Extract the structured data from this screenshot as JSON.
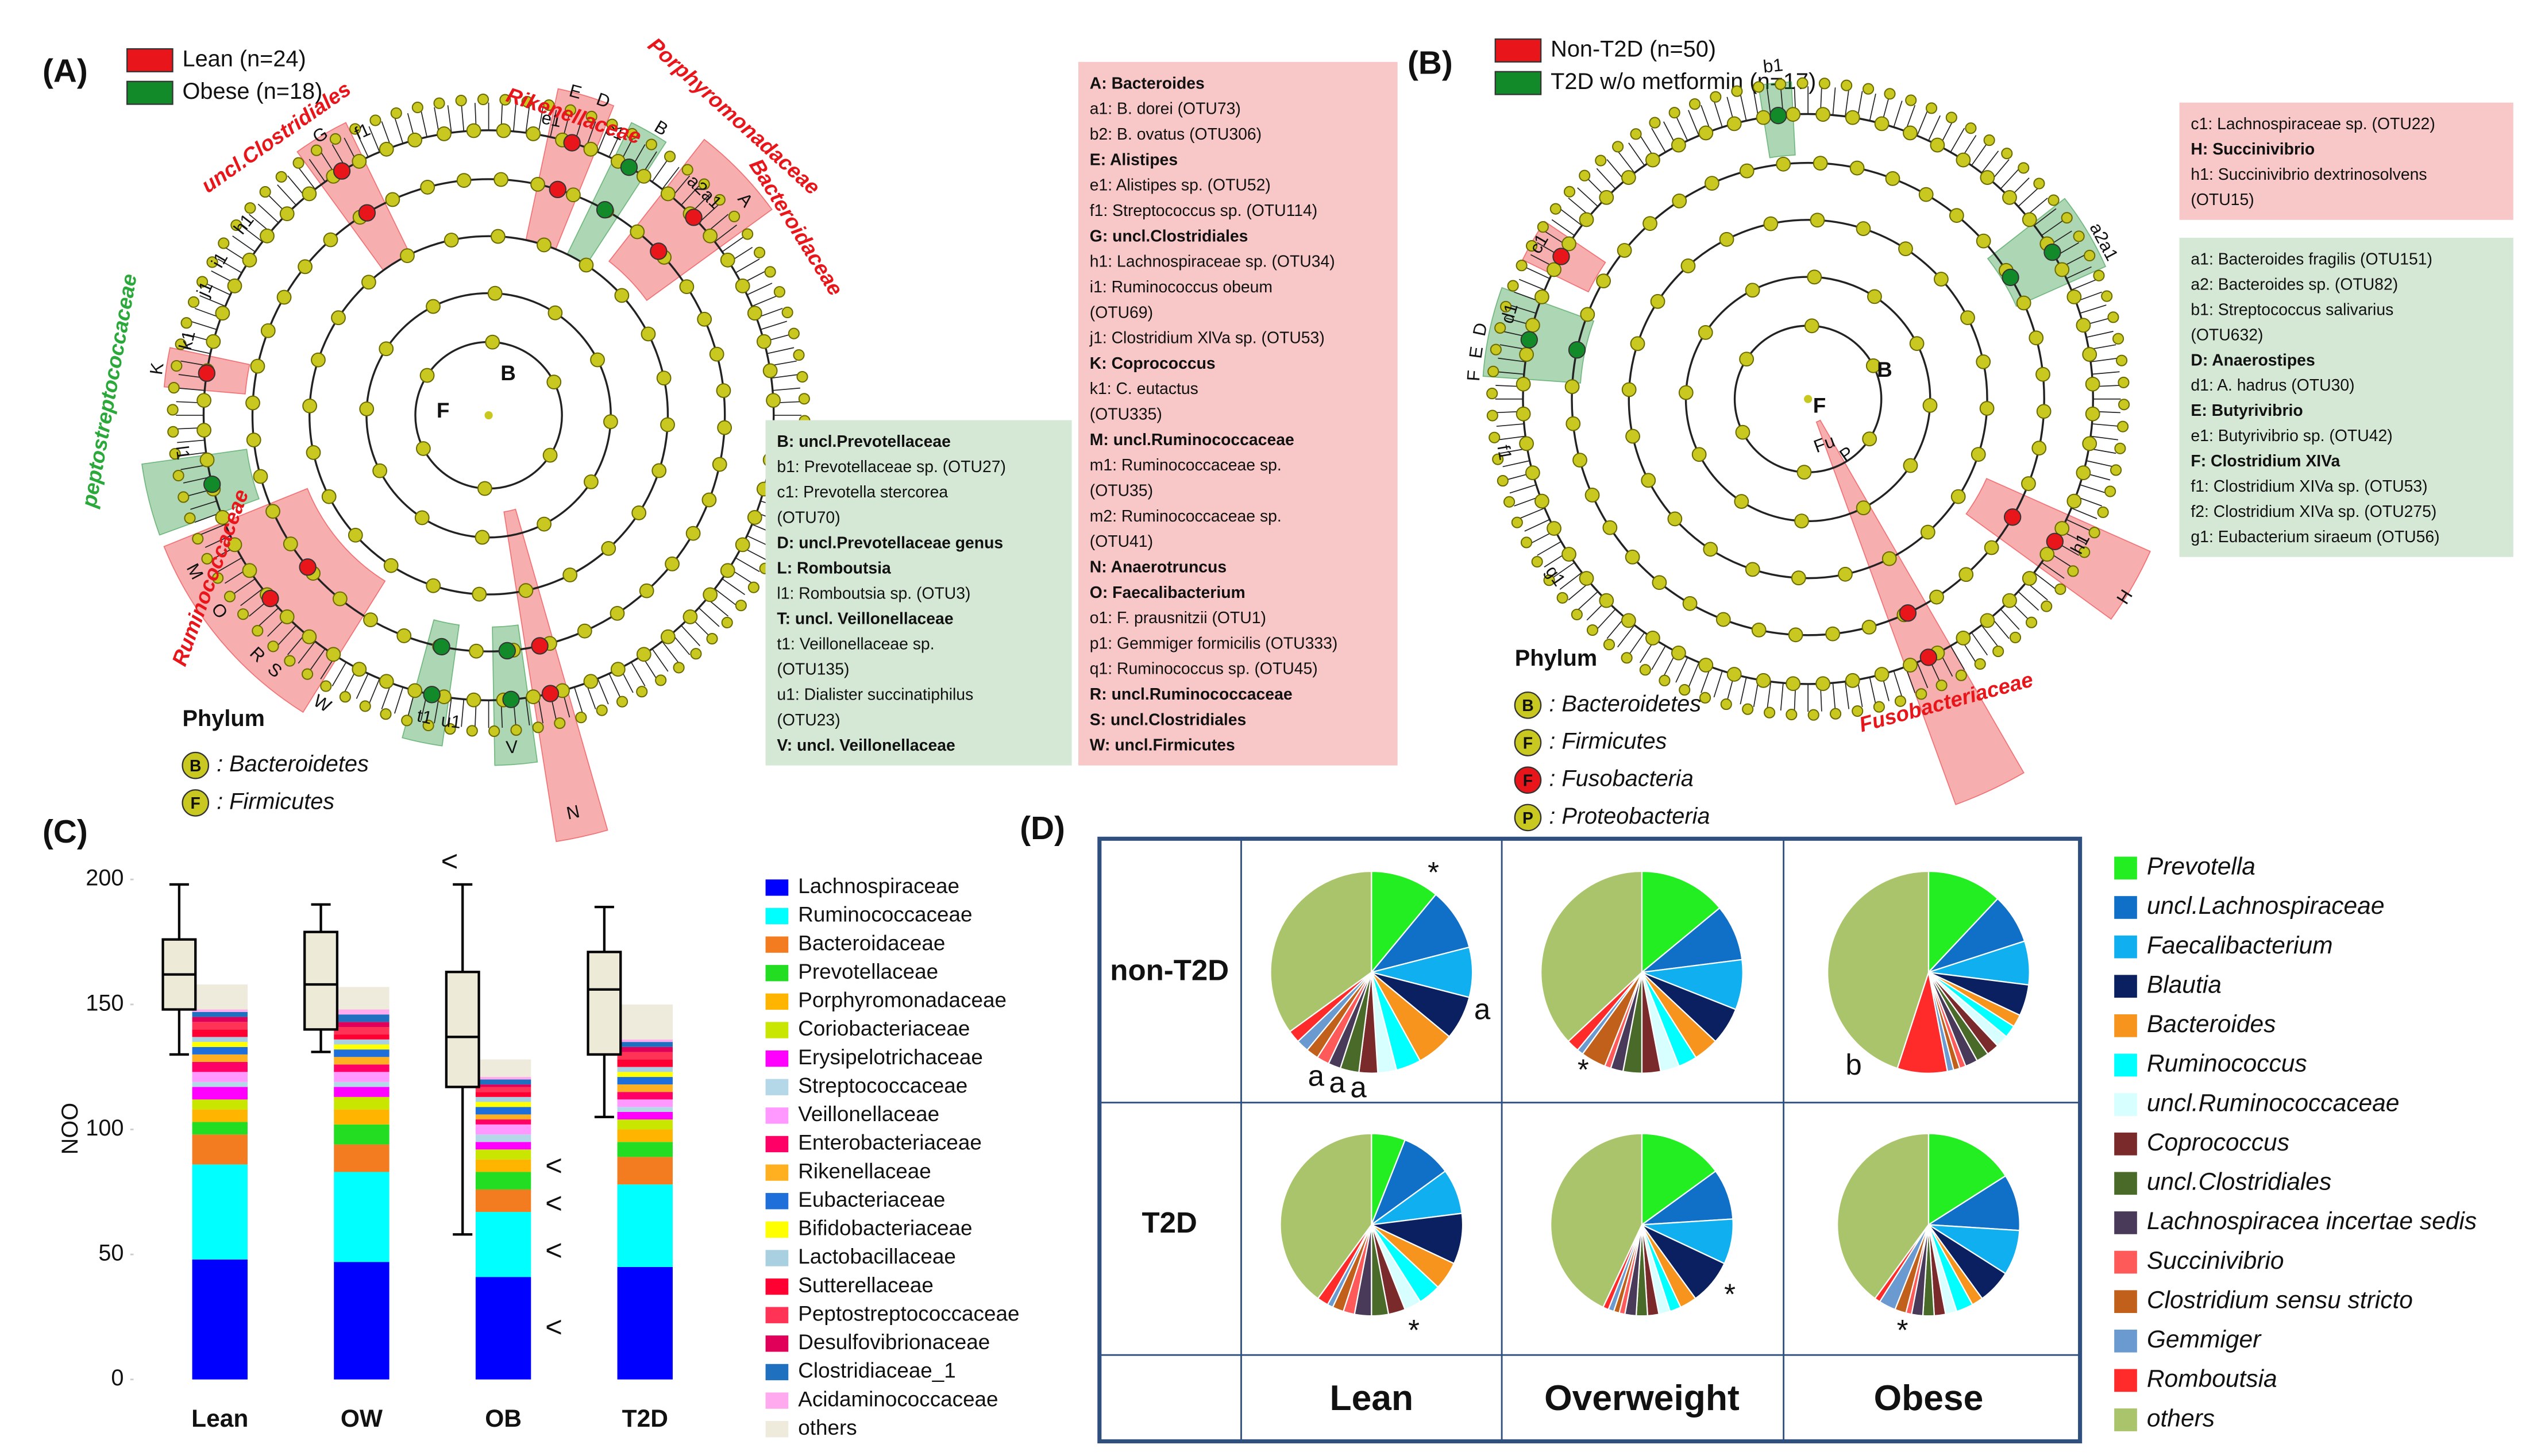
{
  "cladograms": [
    {
      "panel_label": "(A)",
      "legend": [
        {
          "name": "Lean (n=24)",
          "color": "#e8161b"
        },
        {
          "name": "Obese (n=18)",
          "color": "#138a2a"
        }
      ],
      "clade_labels": [
        {
          "text": "uncl.Clostridiales",
          "color": "#e8161b"
        },
        {
          "text": "Rikenellaceae",
          "color": "#e8161b"
        },
        {
          "text": "Porphyromonadaceae",
          "color": "#e8161b"
        },
        {
          "text": "Bacteroidaceae",
          "color": "#e8161b"
        },
        {
          "text": "peptostreptococcaceae",
          "color": "#2aa83a"
        },
        {
          "text": "Ruminococcaceae",
          "color": "#e8161b"
        }
      ],
      "node_labels": [
        "G",
        "f1",
        "E",
        "D",
        "e1",
        "c1",
        "B",
        "A",
        "a2a1",
        "h1",
        "i1",
        "j1",
        "K",
        "k1",
        "l1",
        "S",
        "R",
        "O",
        "N",
        "M",
        "t1",
        "u1",
        "V",
        "W"
      ],
      "center_labels": [
        "F",
        "B"
      ],
      "phylum_title": "Phylum",
      "phylum": [
        {
          "symbol": "B",
          "name": ": Bacteroidetes",
          "color": "#c8c820"
        },
        {
          "symbol": "F",
          "name": ": Firmicutes",
          "color": "#c8c820"
        }
      ],
      "boxes": [
        {
          "color": "#d5e8d6",
          "lines": [
            {
              "text": "B: uncl.Prevotellaceae",
              "bold": true
            },
            {
              "text": "b1: Prevotellaceae sp. (OTU27)",
              "bold": false
            },
            {
              "text": "c1: Prevotella stercorea",
              "bold": false
            },
            {
              "text": "(OTU70)",
              "bold": false
            },
            {
              "text": "D: uncl.Prevotellaceae genus",
              "bold": true
            },
            {
              "text": "L: Romboutsia",
              "bold": true
            },
            {
              "text": "l1: Romboutsia sp. (OTU3)",
              "bold": false
            },
            {
              "text": "T: uncl. Veillonellaceae",
              "bold": true
            },
            {
              "text": "t1: Veillonellaceae sp.",
              "bold": false
            },
            {
              "text": "(OTU135)",
              "bold": false
            },
            {
              "text": "u1: Dialister succinatiphilus",
              "bold": false
            },
            {
              "text": "(OTU23)",
              "bold": false
            },
            {
              "text": "V: uncl. Veillonellaceae",
              "bold": true
            }
          ]
        },
        {
          "color": "#f8c8c8",
          "lines": [
            {
              "text": "A: Bacteroides",
              "bold": true
            },
            {
              "text": "a1: B. dorei (OTU73)",
              "bold": false
            },
            {
              "text": "b2: B. ovatus (OTU306)",
              "bold": false
            },
            {
              "text": "E: Alistipes",
              "bold": true
            },
            {
              "text": "e1: Alistipes sp. (OTU52)",
              "bold": false
            },
            {
              "text": "f1: Streptococcus sp. (OTU114)",
              "bold": false
            },
            {
              "text": "G: uncl.Clostridiales",
              "bold": true
            },
            {
              "text": "h1: Lachnospiraceae sp. (OTU34)",
              "bold": false
            },
            {
              "text": "i1: Ruminococcus obeum",
              "bold": false
            },
            {
              "text": "(OTU69)",
              "bold": false
            },
            {
              "text": "j1: Clostridium XlVa sp. (OTU53)",
              "bold": false
            },
            {
              "text": "K: Coprococcus",
              "bold": true
            },
            {
              "text": "k1: C. eutactus",
              "bold": false
            },
            {
              "text": "(OTU335)",
              "bold": false
            },
            {
              "text": "M: uncl.Ruminococcaceae",
              "bold": true
            },
            {
              "text": "m1: Ruminococcaceae sp.",
              "bold": false
            },
            {
              "text": "(OTU35)",
              "bold": false
            },
            {
              "text": "m2: Ruminococcaceae sp.",
              "bold": false
            },
            {
              "text": "(OTU41)",
              "bold": false
            },
            {
              "text": "N: Anaerotruncus",
              "bold": true
            },
            {
              "text": "O: Faecalibacterium",
              "bold": true
            },
            {
              "text": "o1: F. prausnitzii (OTU1)",
              "bold": false
            },
            {
              "text": "p1: Gemmiger formicilis (OTU333)",
              "bold": false
            },
            {
              "text": "q1: Ruminococcus sp. (OTU45)",
              "bold": false
            },
            {
              "text": "R: uncl.Ruminococcaceae",
              "bold": true
            },
            {
              "text": "S: uncl.Clostridiales",
              "bold": true
            },
            {
              "text": "W: uncl.Firmicutes",
              "bold": true
            }
          ]
        }
      ]
    },
    {
      "panel_label": "(B)",
      "legend": [
        {
          "name": "Non-T2D (n=50)",
          "color": "#e8161b"
        },
        {
          "name": "T2D w/o metformin (n=17)",
          "color": "#138a2a"
        }
      ],
      "clade_labels": [
        {
          "text": "Fusobacteriaceae",
          "color": "#e8161b"
        }
      ],
      "node_labels": [
        "b1",
        "a2a1",
        "F",
        "E",
        "D",
        "d1",
        "c1",
        "f1",
        "g1",
        "h1",
        "H",
        "Fu",
        "P"
      ],
      "center_labels": [
        "F",
        "B"
      ],
      "phylum_title": "Phylum",
      "phylum": [
        {
          "symbol": "B",
          "name": ": Bacteroidetes",
          "color": "#c8c820"
        },
        {
          "symbol": "F",
          "name": ": Firmicutes",
          "color": "#c8c820"
        },
        {
          "symbol": "F",
          "name": ": Fusobacteria",
          "color": "#e8161b"
        },
        {
          "symbol": "P",
          "name": ": Proteobacteria",
          "color": "#c8c820"
        }
      ],
      "boxes": [
        {
          "color": "#f8c8c8",
          "lines": [
            {
              "text": "c1: Lachnospiraceae sp. (OTU22)",
              "bold": false
            },
            {
              "text": "H: Succinivibrio",
              "bold": true
            },
            {
              "text": "h1: Succinivibrio dextrinosolvens",
              "bold": false
            },
            {
              "text": "(OTU15)",
              "bold": false
            }
          ]
        },
        {
          "color": "#d5e8d6",
          "lines": [
            {
              "text": "a1: Bacteroides fragilis (OTU151)",
              "bold": false
            },
            {
              "text": "a2: Bacteroides sp. (OTU82)",
              "bold": false
            },
            {
              "text": "b1: Streptococcus salivarius",
              "bold": false
            },
            {
              "text": "(OTU632)",
              "bold": false
            },
            {
              "text": "D: Anaerostipes",
              "bold": true
            },
            {
              "text": "d1: A. hadrus (OTU30)",
              "bold": false
            },
            {
              "text": "E: Butyrivibrio",
              "bold": true
            },
            {
              "text": "e1: Butyrivibrio sp. (OTU42)",
              "bold": false
            },
            {
              "text": "F: Clostridium XIVa",
              "bold": true
            },
            {
              "text": "f1: Clostridium XIVa sp. (OTU53)",
              "bold": false
            },
            {
              "text": "f2: Clostridium XIVa sp. (OTU275)",
              "bold": false
            },
            {
              "text": "g1: Eubacterium siraeum (OTU56)",
              "bold": false
            }
          ]
        }
      ]
    }
  ],
  "chart_data": [
    {
      "type": "bar",
      "panel_label": "(C)",
      "stacked": true,
      "grid": false,
      "ylabel": "NOO",
      "categories": [
        "Lean",
        "OW",
        "OB",
        "T2D"
      ],
      "ylim": [
        0,
        200
      ],
      "yticks": [
        0,
        50,
        100,
        150,
        200
      ],
      "series": [
        {
          "name": "Lachnospiraceae",
          "color": "#0000ff",
          "values": [
            48,
            47,
            41,
            45
          ]
        },
        {
          "name": "Ruminococcaceae",
          "color": "#00ffff",
          "values": [
            38,
            36,
            26,
            33
          ]
        },
        {
          "name": "Bacteroidaceae",
          "color": "#f47c20",
          "values": [
            12,
            11,
            9,
            11
          ]
        },
        {
          "name": "Prevotellaceae",
          "color": "#22dd22",
          "values": [
            5,
            8,
            7,
            6
          ]
        },
        {
          "name": "Porphyromonadaceae",
          "color": "#ffb400",
          "values": [
            5,
            6,
            5,
            5
          ]
        },
        {
          "name": "Coriobacteriaceae",
          "color": "#c8e600",
          "values": [
            4,
            5,
            4,
            4
          ]
        },
        {
          "name": "Erysipelotrichaceae",
          "color": "#ff00ff",
          "values": [
            5,
            4,
            3,
            3
          ]
        },
        {
          "name": "Streptococcaceae",
          "color": "#b4d8e8",
          "values": [
            2,
            2,
            3,
            2
          ]
        },
        {
          "name": "Veillonellaceae",
          "color": "#ff99ff",
          "values": [
            4,
            4,
            4,
            3
          ]
        },
        {
          "name": "Enterobacteriaceae",
          "color": "#ff0066",
          "values": [
            4,
            3,
            2,
            3
          ]
        },
        {
          "name": "Rikenellaceae",
          "color": "#ffb020",
          "values": [
            3,
            3,
            2,
            3
          ]
        },
        {
          "name": "Eubacteriaceae",
          "color": "#1e6fd9",
          "values": [
            3,
            3,
            3,
            3
          ]
        },
        {
          "name": "Bifidobacteriaceae",
          "color": "#ffff00",
          "values": [
            2,
            2,
            2,
            2
          ]
        },
        {
          "name": "Lactobacillaceae",
          "color": "#a8d0e0",
          "values": [
            2,
            2,
            2,
            2
          ]
        },
        {
          "name": "Sutterellaceae",
          "color": "#ff0033",
          "values": [
            3,
            2,
            2,
            3
          ]
        },
        {
          "name": "Peptostreptococcaceae",
          "color": "#ff3355",
          "values": [
            3,
            3,
            2,
            3
          ]
        },
        {
          "name": "Desulfovibrionaceae",
          "color": "#e0005a",
          "values": [
            2,
            2,
            1,
            2
          ]
        },
        {
          "name": "Clostridiaceae_1",
          "color": "#2070c0",
          "values": [
            2,
            3,
            2,
            2
          ]
        },
        {
          "name": "Acidaminococcaceae",
          "color": "#ffaaee",
          "values": [
            1,
            2,
            1,
            1
          ]
        },
        {
          "name": "others",
          "color": "#eeeadc",
          "values": [
            10,
            9,
            7,
            14
          ]
        }
      ],
      "boxplot": {
        "color": "#eeead8",
        "whisker_low": [
          130,
          131,
          58,
          105
        ],
        "q1": [
          148,
          140,
          117,
          130
        ],
        "median": [
          162,
          158,
          137,
          156
        ],
        "q3": [
          176,
          179,
          163,
          171
        ],
        "whisker_high": [
          198,
          190,
          198,
          189
        ]
      },
      "annotations": [
        "<",
        "<",
        "<",
        "<",
        "<"
      ]
    },
    {
      "type": "pie",
      "panel_label": "(D)",
      "rows": [
        "non-T2D",
        "T2D"
      ],
      "columns": [
        "Lean",
        "Overweight",
        "Obese"
      ],
      "categories": [
        "Prevotella",
        "uncl.Lachnospiraceae",
        "Faecalibacterium",
        "Blautia",
        "Bacteroides",
        "Ruminococcus",
        "uncl.Ruminococcaceae",
        "Coprococcus",
        "uncl.Clostridiales",
        "Lachnospiracea incertae sedis",
        "Succinivibrio",
        "Clostridium sensu stricto",
        "Gemmiger",
        "Romboutsia",
        "others"
      ],
      "colors": [
        "#22ee22",
        "#1070c8",
        "#10b0f0",
        "#0a2060",
        "#f7941d",
        "#00ffff",
        "#d8ffff",
        "#7a2a2a",
        "#4a6a2a",
        "#4a3a5a",
        "#ff5a5a",
        "#c0601a",
        "#6a9ad0",
        "#ff2a2a",
        "#a9c46a"
      ],
      "pies": [
        {
          "values": [
            11,
            10,
            8,
            7,
            6,
            4,
            3,
            3,
            3,
            2,
            2,
            2,
            2,
            2,
            35
          ],
          "annotations": [
            "*",
            "a",
            "a",
            "a",
            "a"
          ]
        },
        {
          "values": [
            14,
            9,
            8,
            6,
            4,
            3,
            3,
            3,
            3,
            2,
            1,
            4,
            1,
            2,
            37
          ],
          "annotations": [
            "*"
          ]
        },
        {
          "values": [
            12,
            8,
            7,
            5,
            2,
            2,
            2,
            2,
            2,
            2,
            1,
            1,
            1,
            8,
            45
          ],
          "annotations": [
            "b"
          ]
        },
        {
          "values": [
            6,
            9,
            8,
            9,
            5,
            4,
            3,
            3,
            3,
            3,
            2,
            2,
            1,
            2,
            40
          ],
          "annotations": [
            "*"
          ]
        },
        {
          "values": [
            15,
            9,
            8,
            8,
            3,
            2,
            2,
            2,
            2,
            2,
            1,
            1,
            1,
            1,
            43
          ],
          "annotations": [
            "*"
          ]
        },
        {
          "values": [
            16,
            10,
            8,
            6,
            2,
            3,
            2,
            2,
            2,
            2,
            1,
            2,
            3,
            1,
            40
          ],
          "annotations": [
            "*"
          ]
        }
      ]
    }
  ]
}
